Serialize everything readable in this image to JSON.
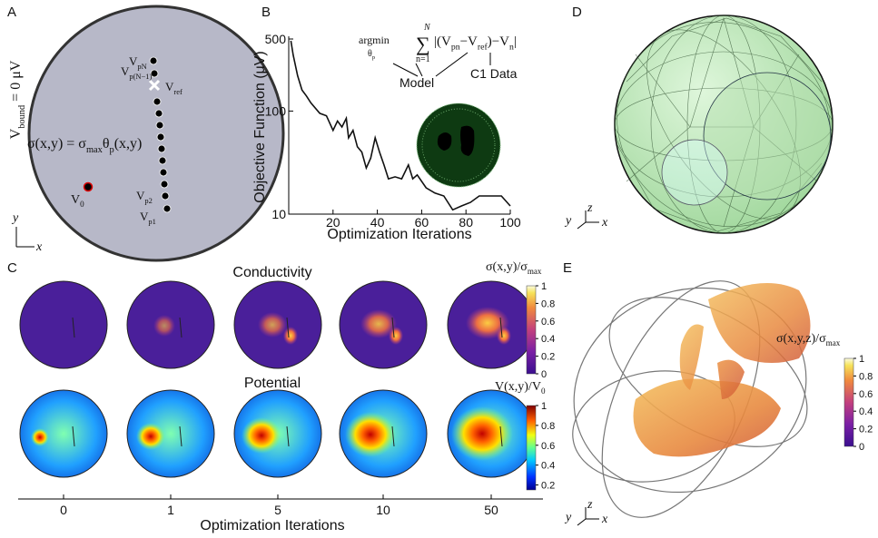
{
  "panel_labels": [
    "A",
    "B",
    "C",
    "D",
    "E"
  ],
  "panel_a": {
    "boundary": [
      "V",
      "bound",
      " = 0 μV"
    ],
    "probes": [
      [
        "V",
        "pN"
      ],
      [
        "V",
        "p(N−1)"
      ],
      [
        "V",
        "ref"
      ],
      [
        "V",
        "p2"
      ],
      [
        "V",
        "p1"
      ]
    ],
    "source": [
      "V",
      "0"
    ],
    "conductivity": [
      "σ(x,y) = σ",
      "max",
      "θ",
      "p",
      "(x,y)"
    ],
    "axes": [
      "y",
      "x"
    ]
  },
  "chart_data": {
    "type": "line",
    "x_label": "Optimization Iterations",
    "y_label": "Objective Function (μV)",
    "x": [
      1,
      2,
      4,
      6,
      8,
      10,
      14,
      17,
      20,
      22,
      24,
      26,
      27,
      29,
      31,
      33,
      35,
      37,
      39,
      41,
      43,
      45,
      48,
      51,
      54,
      56,
      58,
      62,
      66,
      70,
      74,
      78,
      82,
      86,
      96,
      100
    ],
    "values": [
      480,
      350,
      220,
      160,
      140,
      120,
      95,
      90,
      65,
      80,
      70,
      85,
      55,
      65,
      45,
      40,
      28,
      35,
      55,
      40,
      30,
      22,
      23,
      22,
      30,
      22,
      24,
      18,
      16,
      15,
      11,
      12,
      13,
      15,
      15,
      12
    ],
    "color": "#111111",
    "log_y": true,
    "xlim": [
      0,
      100
    ],
    "ylim": [
      10,
      500
    ],
    "xticks": [
      20,
      40,
      60,
      80,
      100
    ],
    "yticks": [
      10,
      100,
      500
    ],
    "annotation": {
      "argmin": "argmin",
      "argmin_sub": [
        "θ",
        "p"
      ],
      "sum": "∑",
      "sum_top": "N",
      "sum_bottom": "n=1",
      "body": [
        "|(V",
        "pn",
        "−V",
        "ref",
        ")−V",
        "n",
        "|"
      ],
      "model": "Model",
      "data": "C1 Data"
    }
  },
  "panel_c": {
    "rows": [
      {
        "title": "Conductivity",
        "colorbar": {
          "label": [
            "σ(x,y)/σ",
            "max"
          ],
          "lim": [
            0,
            1
          ],
          "ticks": [
            0,
            0.2,
            0.4,
            0.6,
            0.8,
            1
          ]
        }
      },
      {
        "title": "Potential",
        "colorbar": {
          "label": [
            "V(x,y)/V",
            "0"
          ],
          "lim": [
            0.15,
            1
          ],
          "ticks": [
            0.2,
            0.4,
            0.6,
            0.8,
            1
          ]
        }
      }
    ],
    "x_label": "Optimization Iterations",
    "categories": [
      "0",
      "1",
      "5",
      "10",
      "50"
    ]
  },
  "panel_d": {
    "axes": [
      "y",
      "z",
      "x"
    ]
  },
  "panel_e": {
    "axes": [
      "y",
      "z",
      "x"
    ],
    "colorbar": {
      "label": [
        "σ(x,y,z)/σ",
        "max"
      ],
      "lim": [
        0,
        1
      ],
      "ticks": [
        0,
        0.2,
        0.4,
        0.6,
        0.8,
        1
      ]
    }
  }
}
